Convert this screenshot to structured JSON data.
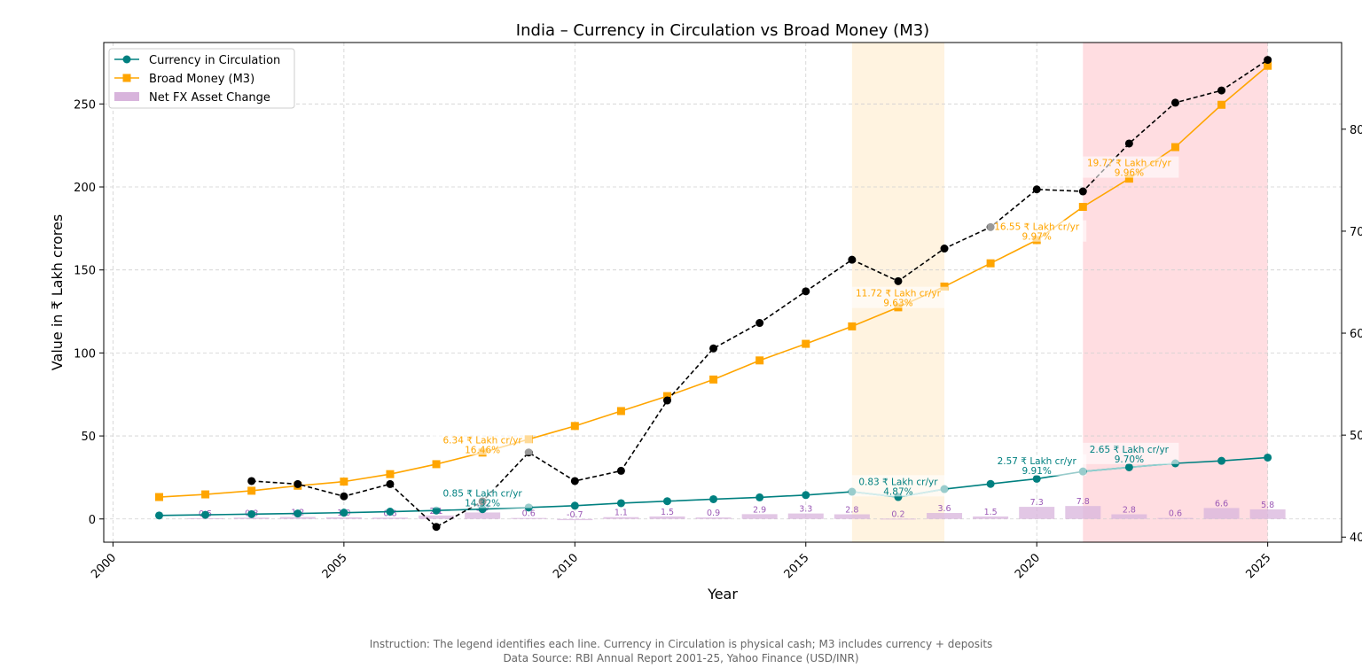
{
  "chart_data": {
    "type": "line",
    "title": "India – Currency in Circulation vs Broad Money (M3)",
    "xlabel": "Year",
    "ylabel": "Value in ₹ Lakh crores",
    "xlim": [
      1999.8,
      2026.6
    ],
    "ylim": [
      -14,
      287
    ],
    "y2lim": [
      39.5,
      88.5
    ],
    "xticks": [
      2000,
      2005,
      2010,
      2015,
      2020,
      2025
    ],
    "yticks": [
      0,
      50,
      100,
      150,
      200,
      250
    ],
    "y2ticks": [
      40,
      50,
      60,
      70,
      80
    ],
    "grid": true,
    "legend_position": "top-left",
    "x": [
      2001,
      2002,
      2003,
      2004,
      2005,
      2006,
      2007,
      2008,
      2009,
      2010,
      2011,
      2012,
      2013,
      2014,
      2015,
      2016,
      2017,
      2018,
      2019,
      2020,
      2021,
      2022,
      2023,
      2024,
      2025
    ],
    "series": [
      {
        "name": "Currency in Circulation",
        "color": "#008080",
        "marker": "circle",
        "values": [
          2.1,
          2.5,
          2.9,
          3.3,
          3.8,
          4.4,
          5.1,
          5.9,
          6.9,
          8.0,
          9.5,
          10.7,
          11.9,
          13.0,
          14.4,
          16.4,
          13.2,
          18.0,
          21.1,
          24.2,
          28.6,
          31.1,
          33.5,
          35.0,
          37.0
        ]
      },
      {
        "name": "Broad Money (M3)",
        "color": "#ffa500",
        "marker": "square",
        "values": [
          13.2,
          14.8,
          17.0,
          20.0,
          22.5,
          27.0,
          33.0,
          40.0,
          48.0,
          56.0,
          65.0,
          74.0,
          84.0,
          95.5,
          105.5,
          116.0,
          127.5,
          140.0,
          154.0,
          168.0,
          188.0,
          205.0,
          224.0,
          249.5,
          273.0
        ]
      },
      {
        "name": "",
        "color": "#000000",
        "marker": "circle",
        "style": "dashed",
        "axis": "right",
        "x": [
          2003,
          2004,
          2005,
          2006,
          2007,
          2008,
          2009,
          2010,
          2011,
          2012,
          2013,
          2014,
          2015,
          2016,
          2017,
          2018,
          2019,
          2020,
          2021,
          2022,
          2023,
          2024,
          2025
        ],
        "values": [
          45.5,
          45.2,
          44.0,
          45.2,
          41.0,
          43.5,
          48.3,
          45.5,
          46.5,
          53.4,
          58.5,
          61.0,
          64.1,
          67.2,
          65.1,
          68.3,
          70.4,
          74.1,
          73.9,
          78.6,
          82.6,
          83.8,
          86.8
        ]
      }
    ],
    "bars": {
      "name": "Net FX Asset Change",
      "color": "#d8b4dc",
      "x": [
        2002,
        2003,
        2004,
        2005,
        2006,
        2007,
        2008,
        2009,
        2010,
        2011,
        2012,
        2013,
        2014,
        2015,
        2016,
        2017,
        2018,
        2019,
        2020,
        2021,
        2022,
        2023,
        2024,
        2025
      ],
      "values": [
        0.5,
        0.8,
        1.2,
        1.0,
        0.8,
        2.1,
        3.9,
        0.6,
        -0.7,
        1.1,
        1.5,
        0.9,
        2.9,
        3.3,
        2.8,
        0.2,
        3.6,
        1.5,
        7.3,
        7.8,
        2.8,
        0.6,
        6.6,
        5.8
      ],
      "labels": [
        "0.5",
        "0.8",
        "1.2",
        "1.0",
        "0.8",
        "2.1",
        "3.9",
        "0.6",
        "-0.7",
        "1.1",
        "1.5",
        "0.9",
        "2.9",
        "3.3",
        "2.8",
        "0.2",
        "3.6",
        "1.5",
        "7.3",
        "7.8",
        "2.8",
        "0.6",
        "6.6",
        "5.8"
      ]
    },
    "shaded_regions": [
      {
        "x": [
          2016,
          2018
        ],
        "color": "#fff3e0"
      },
      {
        "x": [
          2021,
          2025
        ],
        "color": "#ffdde1"
      }
    ],
    "highlighted_segments": [
      {
        "series": 0,
        "x": [
          2016,
          2018
        ],
        "color": "#8fcfcf"
      },
      {
        "series": 0,
        "x": [
          2021,
          2023
        ],
        "color": "#8fcfcf"
      }
    ],
    "annotations": [
      {
        "x": 2008,
        "y": 45.5,
        "text": "6.34 ₹ Lakh cr/yr",
        "text2": "16.46%",
        "color": "#ffa500"
      },
      {
        "x": 2008,
        "y": 13.5,
        "text": "0.85 ₹ Lakh cr/yr",
        "text2": "14.32%",
        "color": "#008080"
      },
      {
        "x": 2017,
        "y": 134.0,
        "text": "11.72 ₹ Lakh cr/yr",
        "text2": "9.63%",
        "color": "#ffa500"
      },
      {
        "x": 2017,
        "y": 20.5,
        "text": "0.83 ₹ Lakh cr/yr",
        "text2": "4.87%",
        "color": "#008080"
      },
      {
        "x": 2020,
        "y": 174.0,
        "text": "16.55 ₹ Lakh cr/yr",
        "text2": "9.97%",
        "color": "#ffa500"
      },
      {
        "x": 2020,
        "y": 33.0,
        "text": "2.57 ₹ Lakh cr/yr",
        "text2": "9.91%",
        "color": "#008080"
      },
      {
        "x": 2022,
        "y": 212.5,
        "text": "19.7? ₹ Lakh cr/yr",
        "text2": "9.96%",
        "color": "#ffa500"
      },
      {
        "x": 2022,
        "y": 40.0,
        "text": "2.65 ₹ Lakh cr/yr",
        "text2": "9.70%",
        "color": "#008080"
      }
    ]
  },
  "footnote": {
    "line1": "Instruction: The legend identifies each line. Currency in Circulation is physical cash; M3 includes currency + deposits",
    "line2": "Data Source: RBI Annual Report 2001-25, Yahoo Finance (USD/INR)"
  }
}
